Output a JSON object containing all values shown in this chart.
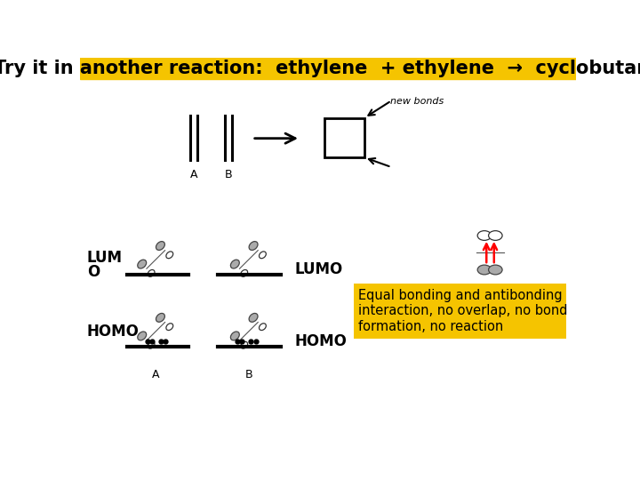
{
  "title": "Try it in another reaction:  ethylene  + ethylene  →  cyclobutane",
  "title_bg": "#F5C400",
  "title_color": "black",
  "title_fontsize": 15,
  "bg_color": "white",
  "new_bonds_text": "new bonds",
  "lumo_label": "LUMO",
  "homo_label": "HOMO",
  "lumo_left_label": "LUM\nO",
  "homo_left_label": "HOMO",
  "label_a_top": "A",
  "label_b_top": "B",
  "label_a_bottom": "A",
  "label_b_bottom": "B",
  "box_text": "Equal bonding and antibonding\ninteraction, no overlap, no bond\nformation, no reaction",
  "box_bg": "#F5C400",
  "box_color": "black"
}
